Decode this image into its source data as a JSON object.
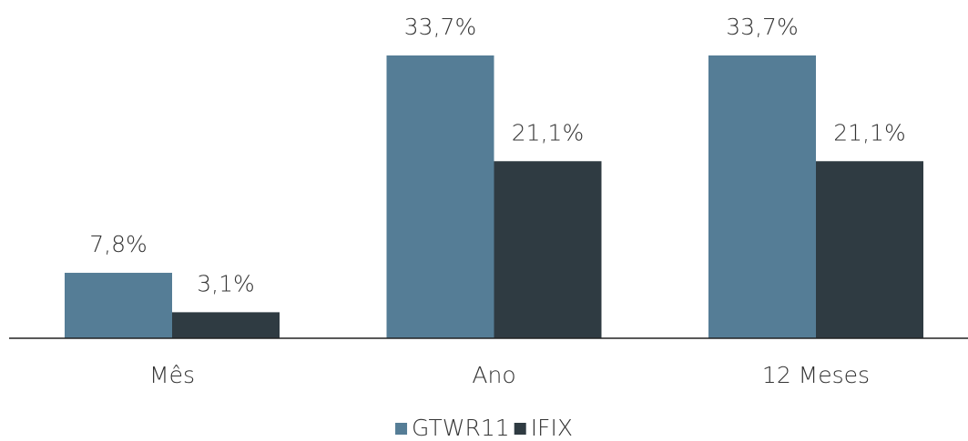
{
  "chart_data": {
    "type": "bar",
    "categories": [
      "Mês",
      "Ano",
      "12 Meses"
    ],
    "series": [
      {
        "name": "GTWR11",
        "color": "#557d96",
        "values": [
          7.8,
          33.7,
          33.7
        ],
        "value_labels": [
          "7,8%",
          "33,7%",
          "33,7%"
        ]
      },
      {
        "name": "IFIX",
        "color": "#2f3b42",
        "values": [
          3.1,
          21.1,
          21.1
        ],
        "value_labels": [
          "3,1%",
          "21,1%",
          "21,1%"
        ]
      }
    ],
    "legend": "bottom"
  }
}
